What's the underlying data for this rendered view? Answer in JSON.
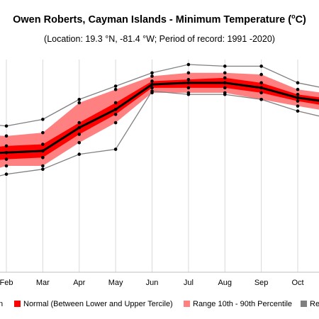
{
  "title": {
    "text": "Owen Roberts, Cayman Islands - Minimum Temperature (",
    "degree_sup": "o",
    "unit": "C)"
  },
  "subtitle": "(Location: 19.3 °N, -81.4 °W; Period of record: 1991 -2020)",
  "legend": {
    "items": [
      {
        "label": "n",
        "swatch": false
      },
      {
        "label": "Normal (Between Lower and Upper Tercile)",
        "swatch": true,
        "color": "#ff0000"
      },
      {
        "label": "Range 10th - 90th Percentile",
        "swatch": true,
        "color": "#ff8080"
      },
      {
        "label": "Re",
        "swatch": true,
        "color": "#808080"
      }
    ]
  },
  "colors": {
    "median": "#000000",
    "normal": "#ff0000",
    "percentile": "#ff8080",
    "range": "#808080",
    "grid": "#d9d9d9"
  },
  "chart_data": {
    "type": "area",
    "x": [
      "Feb",
      "Mar",
      "Apr",
      "May",
      "Jun",
      "Jul",
      "Aug",
      "Sep",
      "Oct"
    ],
    "ylim": [
      18.6,
      25.0
    ],
    "grid": true,
    "series": [
      {
        "name": "Range max",
        "values": [
          23.0,
          23.2,
          23.8,
          24.2,
          24.6,
          24.85,
          24.8,
          24.8,
          24.3
        ]
      },
      {
        "name": "90th percentile",
        "values": [
          22.7,
          22.8,
          23.7,
          24.1,
          24.5,
          24.6,
          24.6,
          24.55,
          24.1
        ]
      },
      {
        "name": "Upper tercile",
        "values": [
          22.4,
          22.45,
          23.1,
          23.7,
          24.35,
          24.4,
          24.45,
          24.3,
          23.95
        ]
      },
      {
        "name": "Median",
        "values": [
          22.2,
          22.25,
          22.95,
          23.5,
          24.25,
          24.3,
          24.3,
          24.15,
          23.85
        ]
      },
      {
        "name": "Lower tercile",
        "values": [
          22.0,
          22.05,
          22.75,
          23.35,
          24.15,
          24.15,
          24.15,
          24.0,
          23.75
        ]
      },
      {
        "name": "10th percentile",
        "values": [
          21.8,
          21.8,
          22.5,
          23.1,
          24.0,
          24.0,
          24.0,
          23.8,
          23.6
        ]
      },
      {
        "name": "Range min",
        "values": [
          21.55,
          21.7,
          22.15,
          22.3,
          24.05,
          23.95,
          23.95,
          23.8,
          23.45
        ]
      }
    ],
    "edge_left_values": {
      "Range max": 23.1,
      "90th percentile": 22.75,
      "Upper tercile": 22.3,
      "Median": 22.15,
      "Lower tercile": 21.9,
      "10th percentile": 21.5,
      "Range min": 21.3
    },
    "edge_right_values": {
      "Range max": 24.0,
      "90th percentile": 23.9,
      "Upper tercile": 23.75,
      "Median": 23.65,
      "Lower tercile": 23.5,
      "10th percentile": 23.35,
      "Range min": 23.1
    }
  }
}
